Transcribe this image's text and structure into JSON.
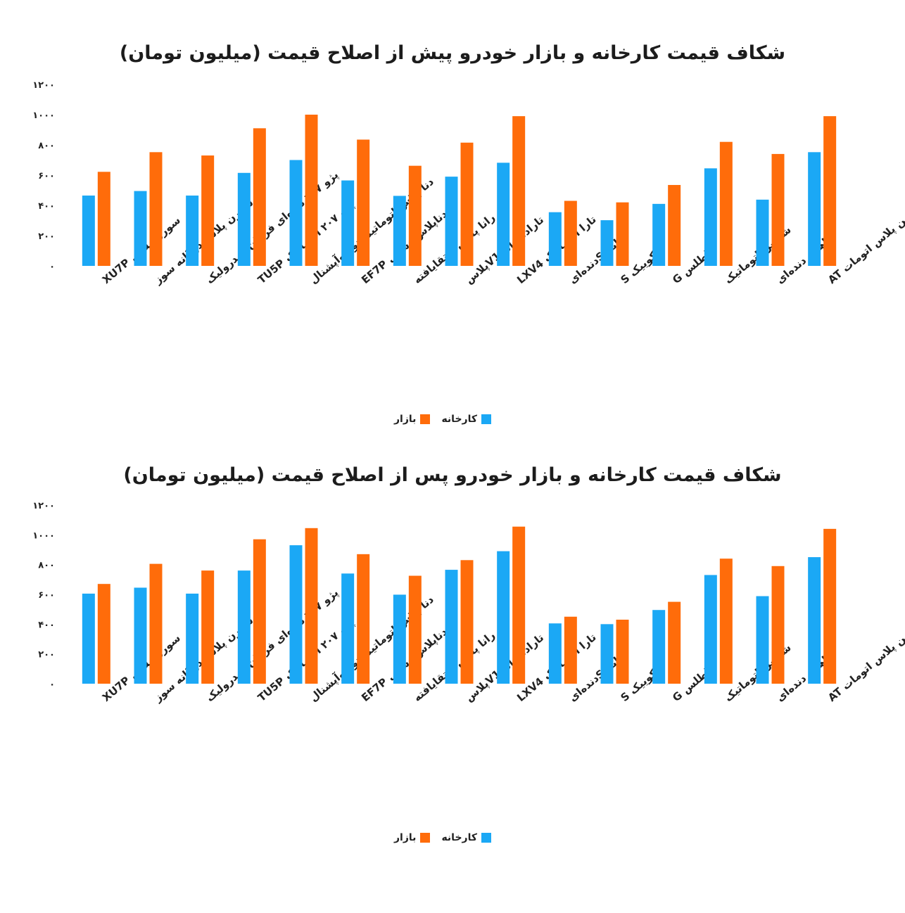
{
  "chart_data": [
    {
      "type": "bar",
      "title": "شکاف قیمت کارخانه و بازار خودرو پیش از اصلاح قیمت (میلیون تومان)",
      "categories": [
        "سورن پلاس XU7P",
        "سورن پلاس دوگانه سوز",
        "پژو ۲۰۷ دنده‌ای فرمان هیدرولیک",
        "پژو ۲۰۷ اتوماتیک TU5P",
        "دنا پلاس اتوماتیک توربو‌آپشنال",
        "دناپلاس دستی EF7P",
        "رانا پلاس ارتقایافته",
        "تارادنده‌ای V1پلاس",
        "تارا اتوماتیک LXV4",
        "ساینا Sدنده‌ای",
        "کوییک S",
        "اطلس G",
        "شاهین اتوماتیک",
        "شاهین دنده‌ای",
        "شاهین پلاس اتومات AT"
      ],
      "series": [
        {
          "name": "کارخانه",
          "values": [
            465,
            495,
            465,
            615,
            700,
            565,
            463,
            590,
            682,
            355,
            302,
            410,
            645,
            438,
            752
          ]
        },
        {
          "name": "بازار",
          "values": [
            622,
            752,
            730,
            910,
            1000,
            835,
            662,
            815,
            990,
            430,
            420,
            535,
            820,
            740,
            990
          ]
        }
      ],
      "y_ticks": [
        "۰",
        "۲۰۰",
        "۴۰۰",
        "۶۰۰",
        "۸۰۰",
        "۱۰۰۰",
        "۱۲۰۰"
      ],
      "ylim": [
        0,
        1200
      ],
      "legend_position": "bottom",
      "colors": {
        "کارخانه": "#1ba8f5",
        "بازار": "#ff6c0a"
      },
      "grid": false
    },
    {
      "type": "bar",
      "title": "شکاف قیمت کارخانه و بازار خودرو پس از اصلاح قیمت (میلیون تومان)",
      "categories": [
        "سورن پلاس XU7P",
        "سورن پلاس دوگانه سوز",
        "پژو ۲۰۷ دنده‌ای فرمان هیدرولیک",
        "پژو ۲۰۷ اتوماتیک TU5P",
        "دنا پلاس اتوماتیک توربو‌آپشنال",
        "دناپلاس دستی EF7P",
        "رانا پلاس ارتقایافته",
        "تارادنده‌ای V1پلاس",
        "تارا اتوماتیک LXV4",
        "ساینا Sدنده‌ای",
        "کوییک S",
        "اطلس G",
        "شاهین اتوماتیک",
        "شاهین دنده‌ای",
        "شاهین پلاس اتومات AT"
      ],
      "series": [
        {
          "name": "کارخانه",
          "values": [
            605,
            645,
            605,
            760,
            930,
            740,
            598,
            765,
            890,
            405,
            400,
            495,
            730,
            588,
            850
          ]
        },
        {
          "name": "بازار",
          "values": [
            670,
            805,
            760,
            970,
            1045,
            870,
            725,
            830,
            1055,
            450,
            430,
            550,
            840,
            790,
            1040
          ]
        }
      ],
      "y_ticks": [
        "۰",
        "۲۰۰",
        "۴۰۰",
        "۶۰۰",
        "۸۰۰",
        "۱۰۰۰",
        "۱۲۰۰"
      ],
      "ylim": [
        0,
        1200
      ],
      "legend_position": "bottom",
      "colors": {
        "کارخانه": "#1ba8f5",
        "بازار": "#ff6c0a"
      },
      "grid": false
    }
  ]
}
